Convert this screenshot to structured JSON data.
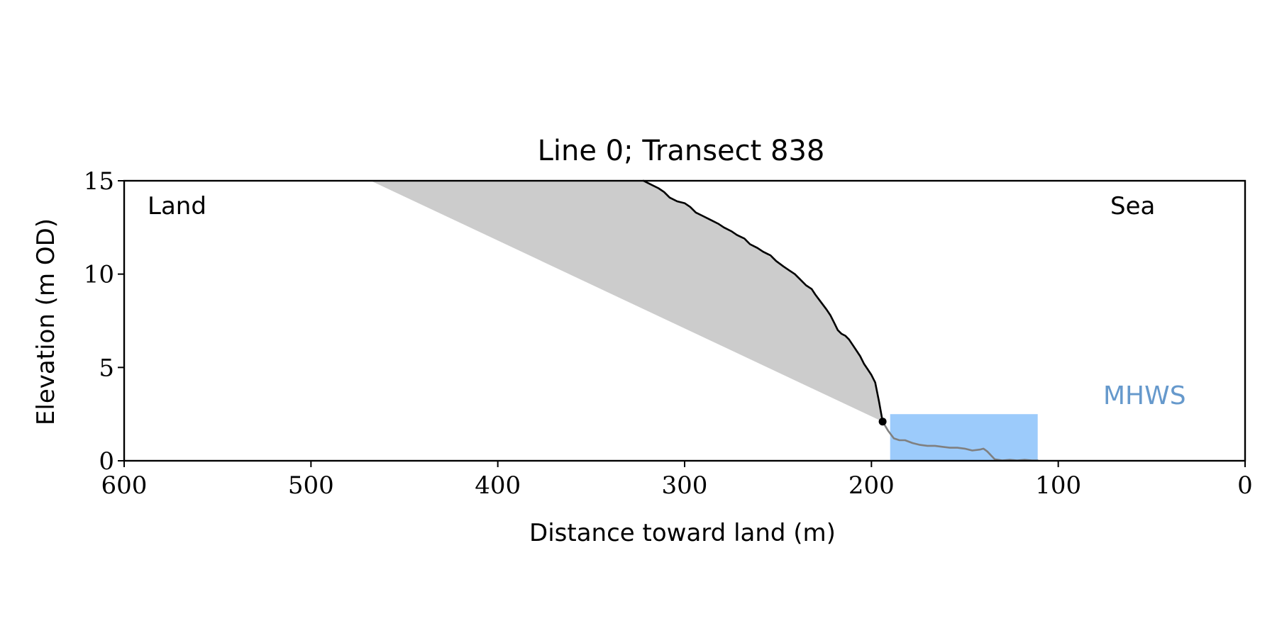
{
  "chart_data": {
    "type": "area",
    "title": "Line 0; Transect 838",
    "xlabel": "Distance toward land (m)",
    "ylabel": "Elevation (m OD)",
    "xlim": [
      600,
      0
    ],
    "ylim": [
      0,
      15
    ],
    "x_axis_reversed": true,
    "x_ticks": [
      600,
      500,
      400,
      300,
      200,
      100,
      0
    ],
    "y_ticks": [
      0,
      5,
      10,
      15
    ],
    "grid": false,
    "annotations": {
      "land": "Land",
      "sea": "Sea",
      "mhws": "MHWS"
    },
    "mhws_level": 2.5,
    "mhws_extent_x": [
      190,
      111
    ],
    "cliff_toe": {
      "x": 194,
      "y": 2.1
    },
    "shaded_region": [
      [
        468,
        15
      ],
      [
        322,
        15
      ],
      [
        314,
        14.6
      ],
      [
        308,
        14.1
      ],
      [
        300,
        13.8
      ],
      [
        294,
        13.3
      ],
      [
        286,
        12.9
      ],
      [
        279,
        12.5
      ],
      [
        272,
        12.1
      ],
      [
        265,
        11.6
      ],
      [
        258,
        11.2
      ],
      [
        251,
        10.7
      ],
      [
        244,
        10.2
      ],
      [
        238,
        9.7
      ],
      [
        232,
        9.2
      ],
      [
        227,
        8.5
      ],
      [
        222,
        7.8
      ],
      [
        218,
        7.0
      ],
      [
        214,
        6.7
      ],
      [
        210,
        6.2
      ],
      [
        206,
        5.6
      ],
      [
        202,
        4.9
      ],
      [
        198,
        4.2
      ],
      [
        194,
        2.1
      ]
    ],
    "series": [
      {
        "name": "",
        "color": "#000000",
        "x": [
          322,
          318,
          314,
          311,
          308,
          304,
          300,
          297,
          294,
          290,
          286,
          282,
          279,
          275,
          272,
          268,
          265,
          261,
          258,
          254,
          251,
          247,
          244,
          241,
          238,
          235,
          232,
          230,
          227,
          224,
          222,
          220,
          218,
          216,
          214,
          212,
          210,
          208,
          206,
          204,
          202,
          200,
          198,
          196,
          194
        ],
        "y": [
          15,
          14.8,
          14.6,
          14.4,
          14.1,
          13.9,
          13.8,
          13.6,
          13.3,
          13.1,
          12.9,
          12.7,
          12.5,
          12.3,
          12.1,
          11.9,
          11.6,
          11.4,
          11.2,
          11.0,
          10.7,
          10.4,
          10.2,
          10.0,
          9.7,
          9.4,
          9.2,
          8.9,
          8.5,
          8.1,
          7.8,
          7.4,
          7.0,
          6.8,
          6.7,
          6.5,
          6.2,
          5.9,
          5.6,
          5.2,
          4.9,
          4.6,
          4.2,
          3.2,
          2.1
        ]
      },
      {
        "name": "",
        "color": "#808080",
        "x": [
          194,
          191,
          188,
          185,
          182,
          178,
          174,
          170,
          166,
          162,
          158,
          154,
          150,
          146,
          142,
          140,
          138,
          134,
          130,
          126,
          122,
          118,
          114,
          111
        ],
        "y": [
          2.1,
          1.6,
          1.2,
          1.1,
          1.1,
          0.95,
          0.85,
          0.8,
          0.8,
          0.75,
          0.7,
          0.7,
          0.65,
          0.55,
          0.6,
          0.65,
          0.5,
          0.08,
          0.02,
          0.05,
          0.02,
          0.05,
          0.02,
          0.02
        ]
      }
    ],
    "colors": {
      "shade": "#cccccc",
      "mhws_fill": "#9ccbfb",
      "mhws_label": "#6699cc",
      "cliff_line": "#000000",
      "platform_line": "#808080"
    }
  }
}
